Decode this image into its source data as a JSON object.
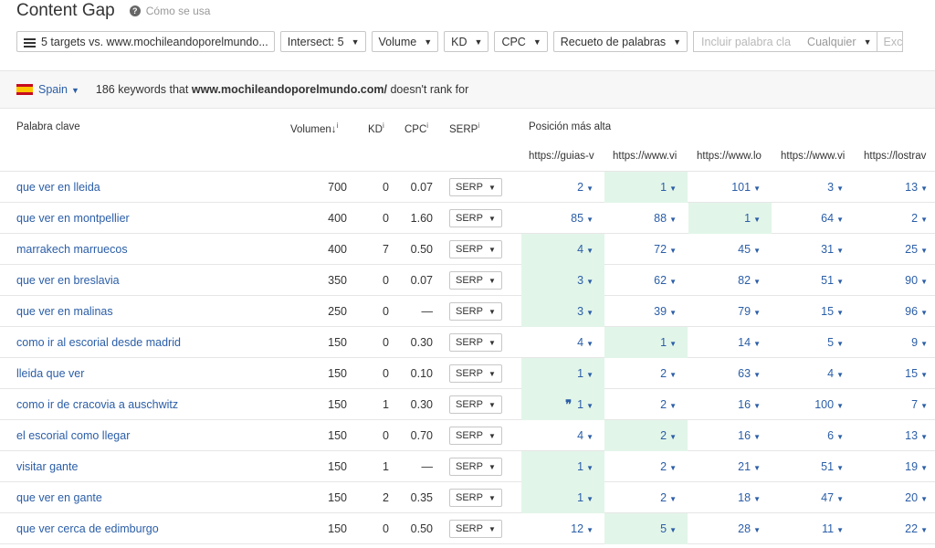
{
  "header": {
    "title": "Content Gap",
    "help_label": "Cómo se usa"
  },
  "toolbar": {
    "targets_label": "5 targets vs. www.mochileandoporelmundo...",
    "intersect_label": "Intersect: 5",
    "volume_label": "Volume",
    "kd_label": "KD",
    "cpc_label": "CPC",
    "word_count_label": "Recueto de palabras",
    "include_placeholder": "Incluir palabra cla",
    "include_mode": "Cualquier",
    "exclude_label": "Exc"
  },
  "summary": {
    "country": "Spain",
    "text_before": "186 keywords that",
    "domain": "www.mochileandoporelmundo.com/",
    "text_after": "doesn't rank for"
  },
  "columns": {
    "keyword": "Palabra clave",
    "volume": "Volumen",
    "kd": "KD",
    "cpc": "CPC",
    "serp": "SERP",
    "top_position": "Posición más alta",
    "targets": [
      "https://guias-v",
      "https://www.vi",
      "https://www.lo",
      "https://www.vi",
      "https://lostrav"
    ]
  },
  "serp_button_label": "SERP",
  "colors": {
    "link": "#2b5ea7",
    "highlight": "#e2f5e9"
  },
  "rows": [
    {
      "keyword": "que ver en lleida",
      "volume": "700",
      "kd": "0",
      "cpc": "0.07",
      "positions": [
        "2",
        "1",
        "101",
        "3",
        "13"
      ],
      "best": 1
    },
    {
      "keyword": "que ver en montpellier",
      "volume": "400",
      "kd": "0",
      "cpc": "1.60",
      "positions": [
        "85",
        "88",
        "1",
        "64",
        "2"
      ],
      "best": 2
    },
    {
      "keyword": "marrakech marruecos",
      "volume": "400",
      "kd": "7",
      "cpc": "0.50",
      "positions": [
        "4",
        "72",
        "45",
        "31",
        "25"
      ],
      "best": 0
    },
    {
      "keyword": "que ver en breslavia",
      "volume": "350",
      "kd": "0",
      "cpc": "0.07",
      "positions": [
        "3",
        "62",
        "82",
        "51",
        "90"
      ],
      "best": 0
    },
    {
      "keyword": "que ver en malinas",
      "volume": "250",
      "kd": "0",
      "cpc": "—",
      "positions": [
        "3",
        "39",
        "79",
        "15",
        "96"
      ],
      "best": 0
    },
    {
      "keyword": "como ir al escorial desde madrid",
      "volume": "150",
      "kd": "0",
      "cpc": "0.30",
      "positions": [
        "4",
        "1",
        "14",
        "5",
        "9"
      ],
      "best": 1
    },
    {
      "keyword": "lleida que ver",
      "volume": "150",
      "kd": "0",
      "cpc": "0.10",
      "positions": [
        "1",
        "2",
        "63",
        "4",
        "15"
      ],
      "best": 0
    },
    {
      "keyword": "como ir de cracovia a auschwitz",
      "volume": "150",
      "kd": "1",
      "cpc": "0.30",
      "positions": [
        "1",
        "2",
        "16",
        "100",
        "7"
      ],
      "best": 0,
      "featured": true
    },
    {
      "keyword": "el escorial como llegar",
      "volume": "150",
      "kd": "0",
      "cpc": "0.70",
      "positions": [
        "4",
        "2",
        "16",
        "6",
        "13"
      ],
      "best": 1
    },
    {
      "keyword": "visitar gante",
      "volume": "150",
      "kd": "1",
      "cpc": "—",
      "positions": [
        "1",
        "2",
        "21",
        "51",
        "19"
      ],
      "best": 0
    },
    {
      "keyword": "que ver en gante",
      "volume": "150",
      "kd": "2",
      "cpc": "0.35",
      "positions": [
        "1",
        "2",
        "18",
        "47",
        "20"
      ],
      "best": 0
    },
    {
      "keyword": "que ver cerca de edimburgo",
      "volume": "150",
      "kd": "0",
      "cpc": "0.50",
      "positions": [
        "12",
        "5",
        "28",
        "11",
        "22"
      ],
      "best": 1
    }
  ]
}
